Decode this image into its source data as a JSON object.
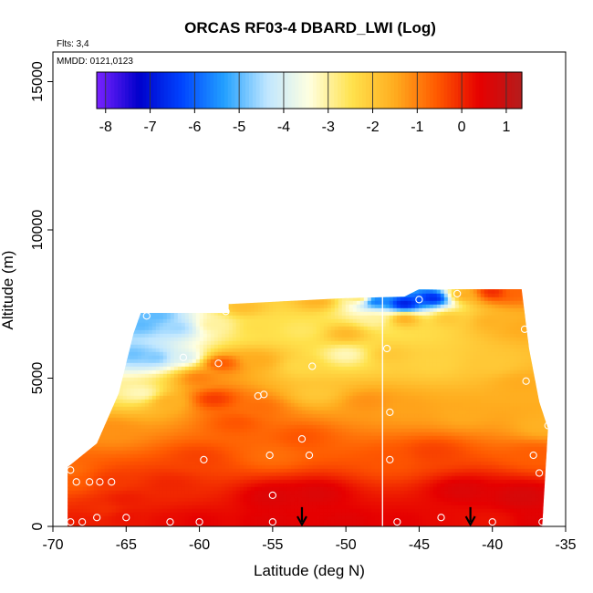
{
  "chart_data": {
    "type": "heatmap",
    "title": "ORCAS RF03-4 DBARD_LWI (Log)",
    "xlabel": "Latitude (deg N)",
    "ylabel": "Altitude (m)",
    "xlim": [
      -70,
      -35
    ],
    "ylim": [
      0,
      16000
    ],
    "x_ticks": [
      -70,
      -65,
      -60,
      -55,
      -50,
      -45,
      -40,
      -35
    ],
    "y_ticks": [
      0,
      5000,
      10000,
      15000
    ],
    "annotations": {
      "flights": "Flts: 3,4",
      "dates": "MMDD: 0121,0123"
    },
    "colorbar": {
      "min": -8.2,
      "max": 1.35,
      "ticks": [
        -8,
        -7,
        -6,
        -5,
        -4,
        -3,
        -2,
        -1,
        0,
        1
      ],
      "colors": [
        "#7a22ff",
        "#0000cc",
        "#0044ff",
        "#22a0ff",
        "#bfe6ff",
        "#ffffe0",
        "#ffe24d",
        "#ffad1f",
        "#ff5a00",
        "#e60000",
        "#b51c1c"
      ]
    },
    "vertical_line_lat": -47.5,
    "arrows_lat": [
      -53,
      -41.5
    ],
    "domain_outline": [
      [
        -69,
        0
      ],
      [
        -69,
        2000
      ],
      [
        -67,
        2800
      ],
      [
        -65.5,
        4500
      ],
      [
        -65,
        5500
      ],
      [
        -64.5,
        6500
      ],
      [
        -64,
        7200
      ],
      [
        -58,
        7200
      ],
      [
        -58,
        7500
      ],
      [
        -50,
        7700
      ],
      [
        -46,
        7750
      ],
      [
        -45,
        8000
      ],
      [
        -38,
        8000
      ],
      [
        -37.5,
        6000
      ],
      [
        -36.8,
        4200
      ],
      [
        -36.2,
        3300
      ],
      [
        -36.6,
        0
      ]
    ],
    "samples": [
      [
        -69,
        1900,
        -0.8
      ],
      [
        -68.5,
        1500,
        -0.6
      ],
      [
        -66,
        1500,
        -0.2
      ],
      [
        -68,
        200,
        0.1
      ],
      [
        -65,
        300,
        0.2
      ],
      [
        -62,
        150,
        0.3
      ],
      [
        -60,
        150,
        0.4
      ],
      [
        -55,
        150,
        0.5
      ],
      [
        -50,
        150,
        0.5
      ],
      [
        -46,
        150,
        0.4
      ],
      [
        -43.5,
        300,
        0.3
      ],
      [
        -40,
        150,
        0.2
      ],
      [
        -36.8,
        200,
        0.5
      ],
      [
        -65,
        900,
        0.1
      ],
      [
        -55,
        1000,
        0.6
      ],
      [
        -52,
        1100,
        0.6
      ],
      [
        -42,
        1200,
        0.6
      ],
      [
        -38,
        1000,
        0.7
      ],
      [
        -60,
        2300,
        -0.3
      ],
      [
        -55,
        2400,
        -0.8
      ],
      [
        -53,
        3000,
        -0.5
      ],
      [
        -47,
        2200,
        -0.5
      ],
      [
        -37,
        2400,
        -0.6
      ],
      [
        -36.5,
        3400,
        -1.6
      ],
      [
        -59,
        4300,
        -0.2
      ],
      [
        -57.5,
        3500,
        -0.5
      ],
      [
        -56,
        4000,
        -0.8
      ],
      [
        -52,
        4500,
        -2.0
      ],
      [
        -48.5,
        4200,
        -1.2
      ],
      [
        -46,
        4000,
        -1.4
      ],
      [
        -42,
        3800,
        -1.5
      ],
      [
        -38,
        4800,
        -1.5
      ],
      [
        -64,
        4500,
        -3.2
      ],
      [
        -62,
        4200,
        -1.6
      ],
      [
        -66,
        3200,
        -1.2
      ],
      [
        -60,
        5000,
        -1.0
      ],
      [
        -58.5,
        5500,
        -0.5
      ],
      [
        -56,
        5600,
        -1.5
      ],
      [
        -53,
        5400,
        -2.3
      ],
      [
        -50,
        5800,
        -3.2
      ],
      [
        -47,
        5800,
        -2.0
      ],
      [
        -44,
        5500,
        -2.2
      ],
      [
        -40,
        5500,
        -2.0
      ],
      [
        -63,
        5700,
        -4.8
      ],
      [
        -61,
        5700,
        -4.0
      ],
      [
        -64.5,
        5800,
        -4.9
      ],
      [
        -64,
        6800,
        -5.0
      ],
      [
        -61.5,
        6700,
        -4.6
      ],
      [
        -59,
        6800,
        -3.0
      ],
      [
        -56,
        6700,
        -2.4
      ],
      [
        -53,
        6600,
        -2.6
      ],
      [
        -50,
        6500,
        -1.7
      ],
      [
        -48,
        7000,
        -3.0
      ],
      [
        -46,
        7000,
        -1.5
      ],
      [
        -43,
        7000,
        -2.0
      ],
      [
        -40,
        6900,
        -1.6
      ],
      [
        -38,
        6700,
        -1.5
      ],
      [
        -48,
        7600,
        -6.0
      ],
      [
        -46,
        7500,
        -7.0
      ],
      [
        -44,
        7700,
        -6.8
      ],
      [
        -42,
        7800,
        -1.5
      ],
      [
        -40,
        7900,
        0.0
      ],
      [
        -38.5,
        7900,
        -0.7
      ],
      [
        -49,
        7700,
        -2.5
      ],
      [
        -63,
        7100,
        -5.0
      ],
      [
        -57,
        7400,
        -1.8
      ],
      [
        -52,
        7600,
        -1.6
      ],
      [
        -66.5,
        600,
        -0.1
      ],
      [
        -62,
        1400,
        0.0
      ],
      [
        -44,
        2500,
        -0.3
      ]
    ],
    "markers": [
      [
        -68.8,
        150
      ],
      [
        -68.8,
        1900
      ],
      [
        -68.4,
        1500
      ],
      [
        -67.5,
        1500
      ],
      [
        -66.8,
        1500
      ],
      [
        -66,
        1500
      ],
      [
        -68,
        150
      ],
      [
        -67,
        300
      ],
      [
        -65,
        300
      ],
      [
        -62,
        150
      ],
      [
        -60,
        150
      ],
      [
        -55,
        150
      ],
      [
        -46.5,
        150
      ],
      [
        -43.5,
        300
      ],
      [
        -40,
        150
      ],
      [
        -36.6,
        150
      ],
      [
        -36.8,
        1800
      ],
      [
        -37.2,
        2400
      ],
      [
        -36.2,
        3400
      ],
      [
        -59.7,
        2250
      ],
      [
        -55.2,
        2400
      ],
      [
        -52.5,
        2400
      ],
      [
        -53,
        2950
      ],
      [
        -47,
        2250
      ],
      [
        -55,
        1050
      ],
      [
        -55.6,
        4450
      ],
      [
        -56,
        4400
      ],
      [
        -58.7,
        5500
      ],
      [
        -52.3,
        5400
      ],
      [
        -61.1,
        5700
      ],
      [
        -47.2,
        6000
      ],
      [
        -37.7,
        4900
      ],
      [
        -37.8,
        6650
      ],
      [
        -63.6,
        7100
      ],
      [
        -58.2,
        7250
      ],
      [
        -45,
        7650
      ],
      [
        -42.4,
        7850
      ],
      [
        -47,
        3850
      ]
    ]
  }
}
